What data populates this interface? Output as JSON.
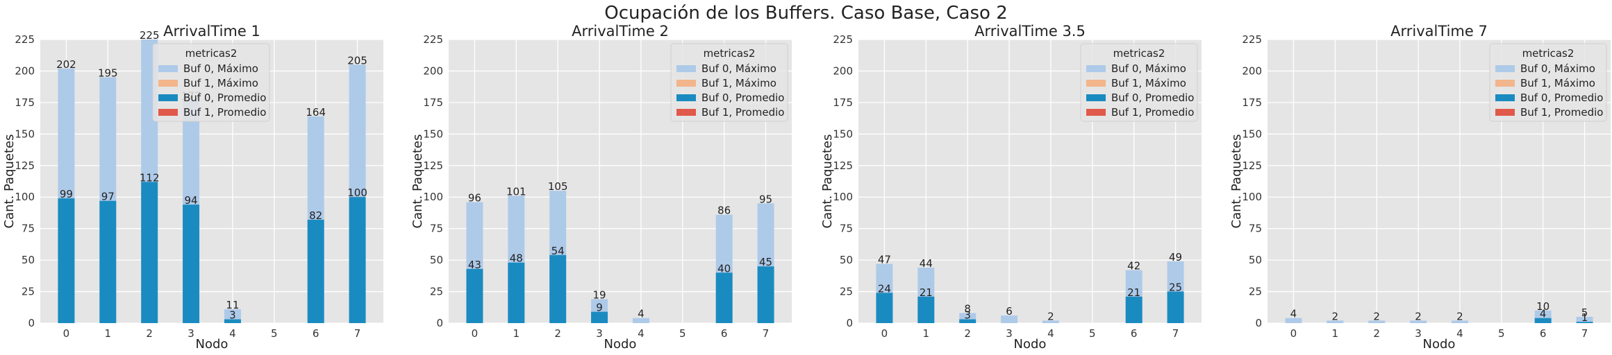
{
  "figure": {
    "title": "Ocupación de los Buffers. Caso Base, Caso 2"
  },
  "colors": {
    "buf0_max": "#aecae9",
    "buf1_max": "#f2b58c",
    "buf0_avg": "#1a8bc0",
    "buf1_avg": "#e0594a",
    "plot_bg": "#e5e5e5",
    "grid": "#ffffff"
  },
  "chart_data": [
    {
      "type": "bar",
      "title": "ArrivalTime 1",
      "xlabel": "Nodo",
      "ylabel": "Cant. Paquetes",
      "ylim": [
        0,
        225
      ],
      "yticks": [
        0,
        25,
        50,
        75,
        100,
        125,
        150,
        175,
        200,
        225
      ],
      "grid": true,
      "legend": {
        "title": "metricas2",
        "placement": "top-center"
      },
      "categories": [
        "0",
        "1",
        "2",
        "3",
        "4",
        "5",
        "6",
        "7"
      ],
      "series": [
        {
          "name": "Buf 0, Máximo",
          "values": [
            202,
            195,
            225,
            177,
            11,
            0,
            164,
            205
          ]
        },
        {
          "name": "Buf 1, Máximo",
          "values": [
            0,
            0,
            0,
            0,
            0,
            0,
            0,
            0
          ]
        },
        {
          "name": "Buf 0, Promedio",
          "values": [
            99,
            97,
            112,
            94,
            3,
            0,
            82,
            100
          ]
        },
        {
          "name": "Buf 1, Promedio",
          "values": [
            0,
            0,
            0,
            0,
            0,
            0,
            0,
            0
          ]
        }
      ]
    },
    {
      "type": "bar",
      "title": "ArrivalTime 2",
      "xlabel": "Nodo",
      "ylabel": "Cant. Paquetes",
      "ylim": [
        0,
        225
      ],
      "yticks": [
        0,
        25,
        50,
        75,
        100,
        125,
        150,
        175,
        200,
        225
      ],
      "grid": true,
      "legend": {
        "title": "metricas2",
        "placement": "top-right"
      },
      "categories": [
        "0",
        "1",
        "2",
        "3",
        "4",
        "5",
        "6",
        "7"
      ],
      "series": [
        {
          "name": "Buf 0, Máximo",
          "values": [
            96,
            101,
            105,
            19,
            4,
            0,
            86,
            95
          ]
        },
        {
          "name": "Buf 1, Máximo",
          "values": [
            0,
            0,
            0,
            0,
            0,
            0,
            0,
            0
          ]
        },
        {
          "name": "Buf 0, Promedio",
          "values": [
            43,
            48,
            54,
            9,
            0,
            0,
            40,
            45
          ]
        },
        {
          "name": "Buf 1, Promedio",
          "values": [
            0,
            0,
            0,
            0,
            0,
            0,
            0,
            0
          ]
        }
      ]
    },
    {
      "type": "bar",
      "title": "ArrivalTime 3.5",
      "xlabel": "Nodo",
      "ylabel": "Cant. Paquetes",
      "ylim": [
        0,
        225
      ],
      "yticks": [
        0,
        25,
        50,
        75,
        100,
        125,
        150,
        175,
        200,
        225
      ],
      "grid": true,
      "legend": {
        "title": "metricas2",
        "placement": "top-right"
      },
      "categories": [
        "0",
        "1",
        "2",
        "3",
        "4",
        "5",
        "6",
        "7"
      ],
      "series": [
        {
          "name": "Buf 0, Máximo",
          "values": [
            47,
            44,
            8,
            6,
            2,
            0,
            42,
            49
          ]
        },
        {
          "name": "Buf 1, Máximo",
          "values": [
            0,
            0,
            0,
            0,
            0,
            0,
            0,
            0
          ]
        },
        {
          "name": "Buf 0, Promedio",
          "values": [
            24,
            21,
            3,
            0,
            0,
            0,
            21,
            25
          ]
        },
        {
          "name": "Buf 1, Promedio",
          "values": [
            0,
            0,
            0,
            0,
            0,
            0,
            0,
            0
          ]
        }
      ]
    },
    {
      "type": "bar",
      "title": "ArrivalTime 7",
      "xlabel": "Nodo",
      "ylabel": "Cant. Paquetes",
      "ylim": [
        0,
        225
      ],
      "yticks": [
        0,
        25,
        50,
        75,
        100,
        125,
        150,
        175,
        200,
        225
      ],
      "grid": true,
      "legend": {
        "title": "metricas2",
        "placement": "top-right"
      },
      "categories": [
        "0",
        "1",
        "2",
        "3",
        "4",
        "5",
        "6",
        "7"
      ],
      "series": [
        {
          "name": "Buf 0, Máximo",
          "values": [
            4,
            2,
            2,
            2,
            2,
            0,
            10,
            5
          ]
        },
        {
          "name": "Buf 1, Máximo",
          "values": [
            0,
            0,
            0,
            0,
            0,
            0,
            0,
            0
          ]
        },
        {
          "name": "Buf 0, Promedio",
          "values": [
            0,
            0,
            0,
            0,
            0,
            0,
            4,
            1
          ]
        },
        {
          "name": "Buf 1, Promedio",
          "values": [
            0,
            0,
            0,
            0,
            0,
            0,
            0,
            0
          ]
        }
      ]
    }
  ]
}
